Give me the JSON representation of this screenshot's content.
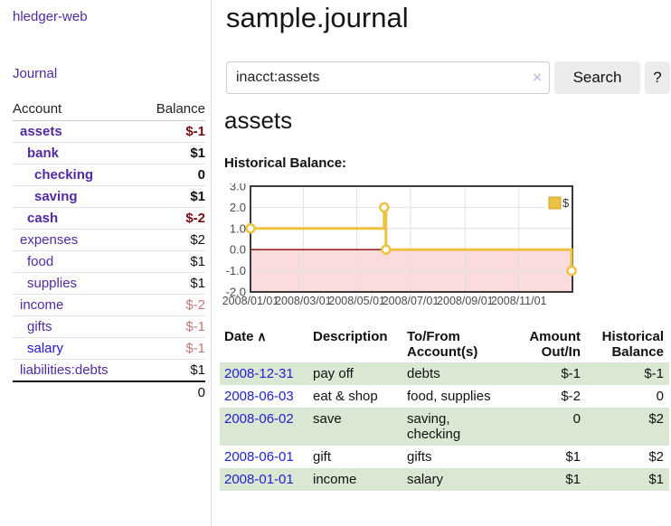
{
  "app": {
    "brand": "hledger-web"
  },
  "sidebar": {
    "nav": {
      "journal": "Journal"
    },
    "accounts": {
      "header": {
        "account": "Account",
        "balance": "Balance"
      },
      "rows": [
        {
          "name": "assets",
          "indent": 1,
          "bold": true,
          "balance": "$-1",
          "balance_class": "neg-strong",
          "link_class": "purple"
        },
        {
          "name": "bank",
          "indent": 2,
          "bold": true,
          "balance": "$1",
          "balance_class": "",
          "link_class": "purple"
        },
        {
          "name": "checking",
          "indent": 3,
          "bold": true,
          "balance": "0",
          "balance_class": "",
          "link_class": "purple"
        },
        {
          "name": "saving",
          "indent": 3,
          "bold": true,
          "balance": "$1",
          "balance_class": "",
          "link_class": "purple"
        },
        {
          "name": "cash",
          "indent": 2,
          "bold": true,
          "balance": "$-2",
          "balance_class": "neg-strong",
          "link_class": "purple"
        },
        {
          "name": "expenses",
          "indent": 1,
          "bold": false,
          "balance": "$2",
          "balance_class": "",
          "link_class": "purple"
        },
        {
          "name": "food",
          "indent": 2,
          "bold": false,
          "balance": "$1",
          "balance_class": "",
          "link_class": "purple"
        },
        {
          "name": "supplies",
          "indent": 2,
          "bold": false,
          "balance": "$1",
          "balance_class": "",
          "link_class": "purple"
        },
        {
          "name": "income",
          "indent": 1,
          "bold": false,
          "balance": "$-2",
          "balance_class": "neg-faded",
          "link_class": "purple"
        },
        {
          "name": "gifts",
          "indent": 2,
          "bold": false,
          "balance": "$-1",
          "balance_class": "neg-faded",
          "link_class": "purple"
        },
        {
          "name": "salary",
          "indent": 2,
          "bold": false,
          "balance": "$-1",
          "balance_class": "neg-faded",
          "link_class": "blue"
        },
        {
          "name": "liabilities:debts",
          "indent": 1,
          "bold": false,
          "balance": "$1",
          "balance_class": "",
          "link_class": "purple"
        }
      ],
      "total": "0"
    }
  },
  "main": {
    "title": "sample.journal",
    "search": {
      "value": "inacct:assets",
      "clear_icon": "×",
      "search_label": "Search",
      "help_label": "?"
    },
    "account_heading": "assets",
    "chart_title": "Historical Balance:"
  },
  "chart_data": {
    "type": "line",
    "step": true,
    "title": "Historical Balance",
    "series": [
      {
        "name": "$",
        "points": [
          [
            "2008-01-01",
            1
          ],
          [
            "2008-06-01",
            2
          ],
          [
            "2008-06-02",
            2
          ],
          [
            "2008-06-03",
            0
          ],
          [
            "2008-12-31",
            -1
          ]
        ]
      }
    ],
    "xlim": [
      "2008-01-01",
      "2009-01-01"
    ],
    "ylim": [
      -2,
      3
    ],
    "y_ticks": [
      3,
      2,
      1,
      0,
      -1,
      -2
    ],
    "y_tick_labels": [
      "3.0",
      "2.0",
      "1.0",
      "0.0",
      "-1.0",
      "-2.0"
    ],
    "x_ticks": [
      "2008-01-01",
      "2008-03-01",
      "2008-05-01",
      "2008-07-01",
      "2008-09-01",
      "2008-11-01"
    ],
    "x_tick_labels": [
      "2008/01/01",
      "2008/03/01",
      "2008/05/01",
      "2008/07/01",
      "2008/09/01",
      "2008/11/01"
    ],
    "legend": {
      "position": "top-right",
      "entries": [
        "$"
      ]
    },
    "grid": true,
    "negative_region_shaded": true,
    "colors": {
      "series": "#edc240",
      "marker_fill": "#ffffff",
      "negative_fill": "#fbdcdc",
      "zero_line": "#8b0000",
      "grid": "#e0e0e0",
      "frame": "#3c3c3c",
      "tick_text": "#4a4a4a",
      "legend_swatch_border": "#c9a32e"
    }
  },
  "register": {
    "headers": [
      {
        "label": "Date",
        "align": "left",
        "sorted": true
      },
      {
        "label": "Description",
        "align": "left"
      },
      {
        "label": "To/From Account(s)",
        "align": "left"
      },
      {
        "label": "Amount Out/In",
        "align": "right"
      },
      {
        "label": "Historical Balance",
        "align": "right"
      }
    ],
    "sort_icon": "∧",
    "rows": [
      {
        "date": "2008-12-31",
        "description": "pay off",
        "accounts": "debts",
        "amount": "$-1",
        "amount_neg": true,
        "balance": "$-1",
        "balance_neg": true
      },
      {
        "date": "2008-06-03",
        "description": "eat & shop",
        "accounts": "food, supplies",
        "amount": "$-2",
        "amount_neg": true,
        "balance": "0",
        "balance_neg": false
      },
      {
        "date": "2008-06-02",
        "description": "save",
        "accounts": "saving, checking",
        "amount": "0",
        "amount_neg": false,
        "balance": "$2",
        "balance_neg": false
      },
      {
        "date": "2008-06-01",
        "description": "gift",
        "accounts": "gifts",
        "amount": "$1",
        "amount_neg": false,
        "balance": "$2",
        "balance_neg": false
      },
      {
        "date": "2008-01-01",
        "description": "income",
        "accounts": "salary",
        "amount": "$1",
        "amount_neg": false,
        "balance": "$1",
        "balance_neg": false
      }
    ]
  },
  "colors": {
    "link_purple": "#5229a0",
    "link_blue": "#1d14d8",
    "date_link_blue": "#2222cc",
    "negative_strong": "#7a0c0c",
    "negative_faded": "#c17a78",
    "row_green": "#d9e7d3",
    "button_gray": "#ececec"
  }
}
